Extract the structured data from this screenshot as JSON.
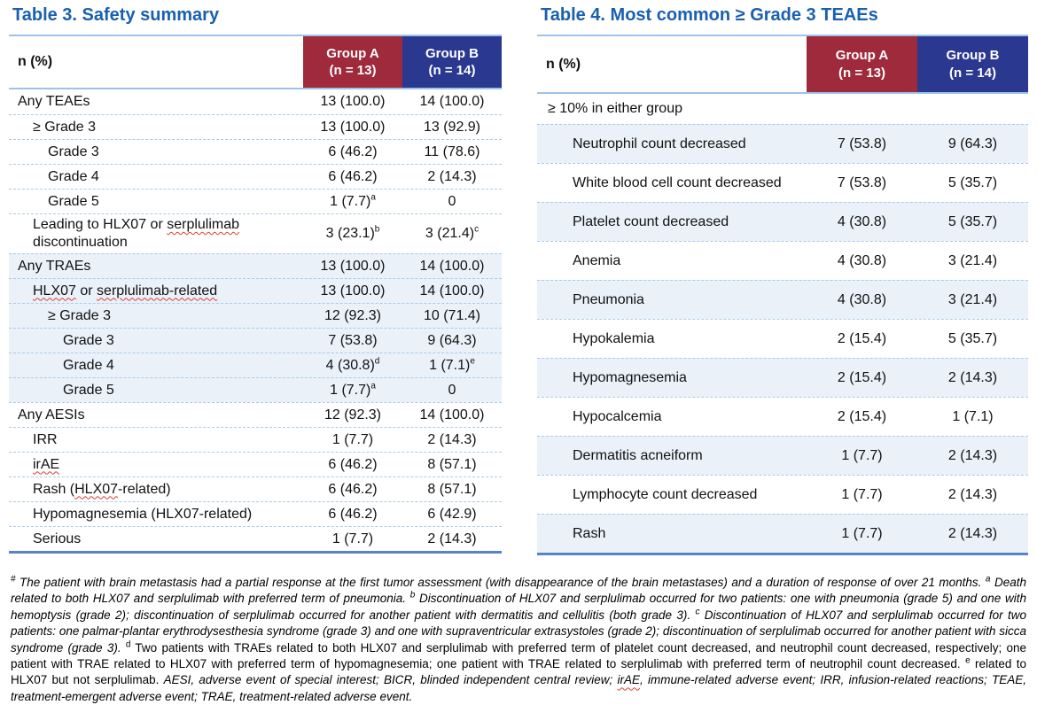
{
  "colors": {
    "title_blue": "#1960B0",
    "groupA_red": "#9E2A3C",
    "groupB_navy": "#2B3890",
    "band_blue": "#EAF1F9",
    "separator_blue": "#A9CBE9",
    "border_light": "#9DC3E6",
    "border_dark": "#5585C8",
    "squiggle_red": "#E03C31"
  },
  "table3": {
    "title": "Table 3. Safety summary",
    "header": {
      "label": "n (%)",
      "groupA": {
        "name": "Group A",
        "n": "(n = 13)"
      },
      "groupB": {
        "name": "Group B",
        "n": "(n = 14)"
      }
    },
    "rows": [
      {
        "label": [
          {
            "t": "Any TEAEs"
          }
        ],
        "indent": 0,
        "band": false,
        "a": "13 (100.0)",
        "b": "14 (100.0)"
      },
      {
        "label": [
          {
            "t": "≥ Grade 3"
          }
        ],
        "indent": 1,
        "band": false,
        "a": "13 (100.0)",
        "b": "13 (92.9)"
      },
      {
        "label": [
          {
            "t": "Grade 3"
          }
        ],
        "indent": 2,
        "band": false,
        "a": "6 (46.2)",
        "b": "11 (78.6)"
      },
      {
        "label": [
          {
            "t": "Grade 4"
          }
        ],
        "indent": 2,
        "band": false,
        "a": "6 (46.2)",
        "b": "2 (14.3)"
      },
      {
        "label": [
          {
            "t": "Grade 5"
          }
        ],
        "indent": 2,
        "band": false,
        "a": "1 (7.7)",
        "aSup": "a",
        "b": "0"
      },
      {
        "label": [
          {
            "t": "Leading to HLX07 or "
          },
          {
            "t": "serplulimab",
            "sq": true
          },
          {
            "t": " discontinuation"
          }
        ],
        "indent": 1,
        "band": false,
        "a": "3 (23.1)",
        "aSup": "b",
        "b": "3 (21.4)",
        "bSup": "c"
      },
      {
        "label": [
          {
            "t": "Any TRAEs"
          }
        ],
        "indent": 0,
        "band": true,
        "a": "13 (100.0)",
        "b": "14 (100.0)"
      },
      {
        "label": [
          {
            "t": "HLX07",
            "sq": true
          },
          {
            "t": " or "
          },
          {
            "t": "serplulimab-related",
            "sq": true
          }
        ],
        "indent": 1,
        "band": true,
        "a": "13 (100.0)",
        "b": "14 (100.0)"
      },
      {
        "label": [
          {
            "t": "≥ Grade 3"
          }
        ],
        "indent": 2,
        "band": true,
        "a": "12 (92.3)",
        "b": "10 (71.4)"
      },
      {
        "label": [
          {
            "t": "Grade 3"
          }
        ],
        "indent": 3,
        "band": true,
        "a": "7 (53.8)",
        "b": "9 (64.3)"
      },
      {
        "label": [
          {
            "t": "Grade 4"
          }
        ],
        "indent": 3,
        "band": true,
        "a": "4 (30.8)",
        "aSup": "d",
        "b": "1 (7.1)",
        "bSup": "e"
      },
      {
        "label": [
          {
            "t": "Grade 5"
          }
        ],
        "indent": 3,
        "band": true,
        "a": "1 (7.7)",
        "aSup": "a",
        "b": "0"
      },
      {
        "label": [
          {
            "t": "Any AESIs"
          }
        ],
        "indent": 0,
        "band": false,
        "a": "12 (92.3)",
        "b": "14 (100.0)"
      },
      {
        "label": [
          {
            "t": "IRR"
          }
        ],
        "indent": 1,
        "band": false,
        "a": "1 (7.7)",
        "b": "2 (14.3)"
      },
      {
        "label": [
          {
            "t": "irAE",
            "sq": true
          }
        ],
        "indent": 1,
        "band": false,
        "a": "6 (46.2)",
        "b": "8 (57.1)"
      },
      {
        "label": [
          {
            "t": "Rash ("
          },
          {
            "t": "HLX07",
            "sq": true
          },
          {
            "t": "-related)"
          }
        ],
        "indent": 1,
        "band": false,
        "a": "6 (46.2)",
        "b": "8 (57.1)"
      },
      {
        "label": [
          {
            "t": "Hypomagnesemia (HLX07-related)"
          }
        ],
        "indent": 1,
        "band": false,
        "a": "6 (46.2)",
        "b": "6 (42.9)"
      },
      {
        "label": [
          {
            "t": "Serious"
          }
        ],
        "indent": 1,
        "band": false,
        "a": "1 (7.7)",
        "b": "2 (14.3)"
      }
    ]
  },
  "table4": {
    "title": "Table 4. Most common ≥ Grade 3 TEAEs",
    "header": {
      "label": "n (%)",
      "groupA": {
        "name": "Group A",
        "n": "(n = 13)"
      },
      "groupB": {
        "name": "Group B",
        "n": "(n = 14)"
      }
    },
    "subheader": "≥ 10% in either group",
    "rows": [
      {
        "label": [
          {
            "t": "Neutrophil count decreased"
          }
        ],
        "band": true,
        "a": "7 (53.8)",
        "b": "9 (64.3)"
      },
      {
        "label": [
          {
            "t": "White blood cell count decreased"
          }
        ],
        "band": false,
        "a": "7 (53.8)",
        "b": "5 (35.7)"
      },
      {
        "label": [
          {
            "t": "Platelet count decreased"
          }
        ],
        "band": true,
        "a": "4 (30.8)",
        "b": "5 (35.7)"
      },
      {
        "label": [
          {
            "t": "Anemia"
          }
        ],
        "band": false,
        "a": "4 (30.8)",
        "b": "3 (21.4)"
      },
      {
        "label": [
          {
            "t": "Pneumonia"
          }
        ],
        "band": true,
        "a": "4 (30.8)",
        "b": "3 (21.4)"
      },
      {
        "label": [
          {
            "t": "Hypokalemia"
          }
        ],
        "band": false,
        "a": "2 (15.4)",
        "b": "5 (35.7)"
      },
      {
        "label": [
          {
            "t": "Hypomagnesemia"
          }
        ],
        "band": true,
        "a": "2 (15.4)",
        "b": "2 (14.3)"
      },
      {
        "label": [
          {
            "t": "Hypocalcemia"
          }
        ],
        "band": false,
        "a": "2 (15.4)",
        "b": "1 (7.1)"
      },
      {
        "label": [
          {
            "t": "Dermatitis acneiform"
          }
        ],
        "band": true,
        "a": "1 (7.7)",
        "b": "2 (14.3)"
      },
      {
        "label": [
          {
            "t": "Lymphocyte count decreased"
          }
        ],
        "band": false,
        "a": "1 (7.7)",
        "b": "2 (14.3)"
      },
      {
        "label": [
          {
            "t": "Rash"
          }
        ],
        "band": true,
        "a": "1 (7.7)",
        "b": "2 (14.3)"
      }
    ]
  },
  "footnote": {
    "segments": [
      {
        "sup": "#",
        "italic": true
      },
      {
        "t": " The patient with brain metastasis had a partial response at the first tumor assessment (with disappearance of the brain metastases) and a duration of response of over 21 months. ",
        "italic": true
      },
      {
        "sup": "a",
        "italic": true
      },
      {
        "t": " Death related to both HLX07 and serplulimab with preferred term of pneumonia. ",
        "italic": true
      },
      {
        "sup": "b",
        "italic": true
      },
      {
        "t": " Discontinuation of HLX07 and serplulimab occurred for two patients: one with pneumonia (grade 5) and one with hemoptysis (grade 2); discontinuation of serplulimab occurred for another patient with dermatitis and cellulitis (both grade 3). ",
        "italic": true
      },
      {
        "sup": "c",
        "italic": true
      },
      {
        "t": " Discontinuation of HLX07 and serplulimab occurred for two patients: one palmar-plantar erythrodysesthesia syndrome (grade 3) and one with supraventricular extrasystoles (grade 2); discontinuation of serplulimab occurred for another patient with sicca syndrome (grade 3). ",
        "italic": true
      },
      {
        "sup": "d",
        "italic": false
      },
      {
        "t": " Two patients with TRAEs related to both HLX07 and serplulimab with preferred term of platelet count decreased, and neutrophil count decreased, respectively; one patient with TRAE related to HLX07 with preferred term of hypomagnesemia; one patient with TRAE related to serplulimab with preferred term of neutrophil count decreased. ",
        "italic": false
      },
      {
        "sup": "e",
        "italic": false
      },
      {
        "t": " related to HLX07 but not serplulimab. ",
        "italic": false
      },
      {
        "t": "AESI, adverse event of special interest; BICR, blinded independent central review; ",
        "italic": true
      },
      {
        "t": "irAE",
        "italic": true,
        "sq": true
      },
      {
        "t": ", immune-related adverse event; IRR, infusion-related reactions; TEAE, treatment-emergent adverse event; TRAE, treatment-related adverse event.",
        "italic": true
      }
    ]
  }
}
